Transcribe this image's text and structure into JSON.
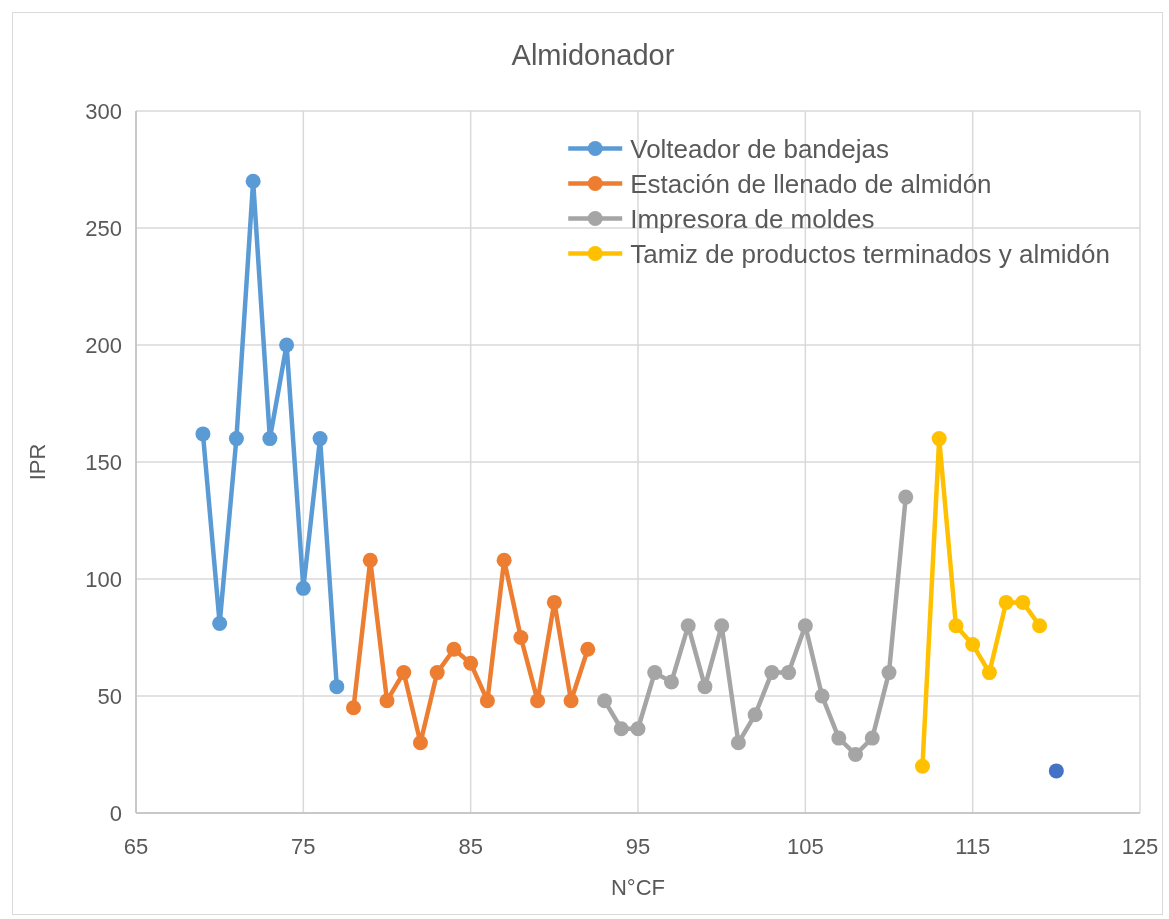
{
  "chart_data": {
    "type": "line",
    "title": "Almidonador",
    "xlabel": "N°CF",
    "ylabel": "IPR",
    "xlim": [
      65,
      125
    ],
    "xticks": [
      65,
      75,
      85,
      95,
      105,
      115,
      125
    ],
    "ylim": [
      0,
      300
    ],
    "yticks": [
      0,
      50,
      100,
      150,
      200,
      250,
      300
    ],
    "grid": true,
    "legend": "top right",
    "marker": "circle",
    "line_style": "solid",
    "series": [
      {
        "name": "Volteador de bandejas",
        "color": "#5b9bd5",
        "x": [
          69,
          70,
          71,
          72,
          73,
          74,
          75,
          76,
          77
        ],
        "values": [
          162,
          81,
          160,
          270,
          160,
          200,
          96,
          160,
          54
        ]
      },
      {
        "name": "Estación de llenado de almidón",
        "color": "#ed7d31",
        "x": [
          78,
          79,
          80,
          81,
          82,
          83,
          84,
          85,
          86,
          87,
          88,
          89,
          90,
          91,
          92
        ],
        "values": [
          45,
          108,
          48,
          60,
          30,
          60,
          70,
          64,
          48,
          108,
          75,
          48,
          90,
          48,
          70
        ]
      },
      {
        "name": "Impresora de moldes",
        "color": "#a5a5a5",
        "x": [
          93,
          94,
          95,
          96,
          97,
          98,
          99,
          100,
          101,
          102,
          103,
          104,
          105,
          106,
          107,
          108,
          109,
          110,
          111
        ],
        "values": [
          48,
          36,
          36,
          60,
          56,
          80,
          54,
          80,
          30,
          42,
          60,
          60,
          80,
          50,
          32,
          25,
          32,
          60,
          135
        ]
      },
      {
        "name": "Tamiz de productos terminados y almidón",
        "color": "#ffc000",
        "x": [
          112,
          113,
          114,
          115,
          116,
          117,
          118,
          119
        ],
        "values": [
          20,
          160,
          80,
          72,
          60,
          90,
          90,
          80
        ]
      },
      {
        "type": "scatter",
        "color": "#4472c4",
        "x": [
          120
        ],
        "values": [
          18
        ]
      }
    ]
  }
}
